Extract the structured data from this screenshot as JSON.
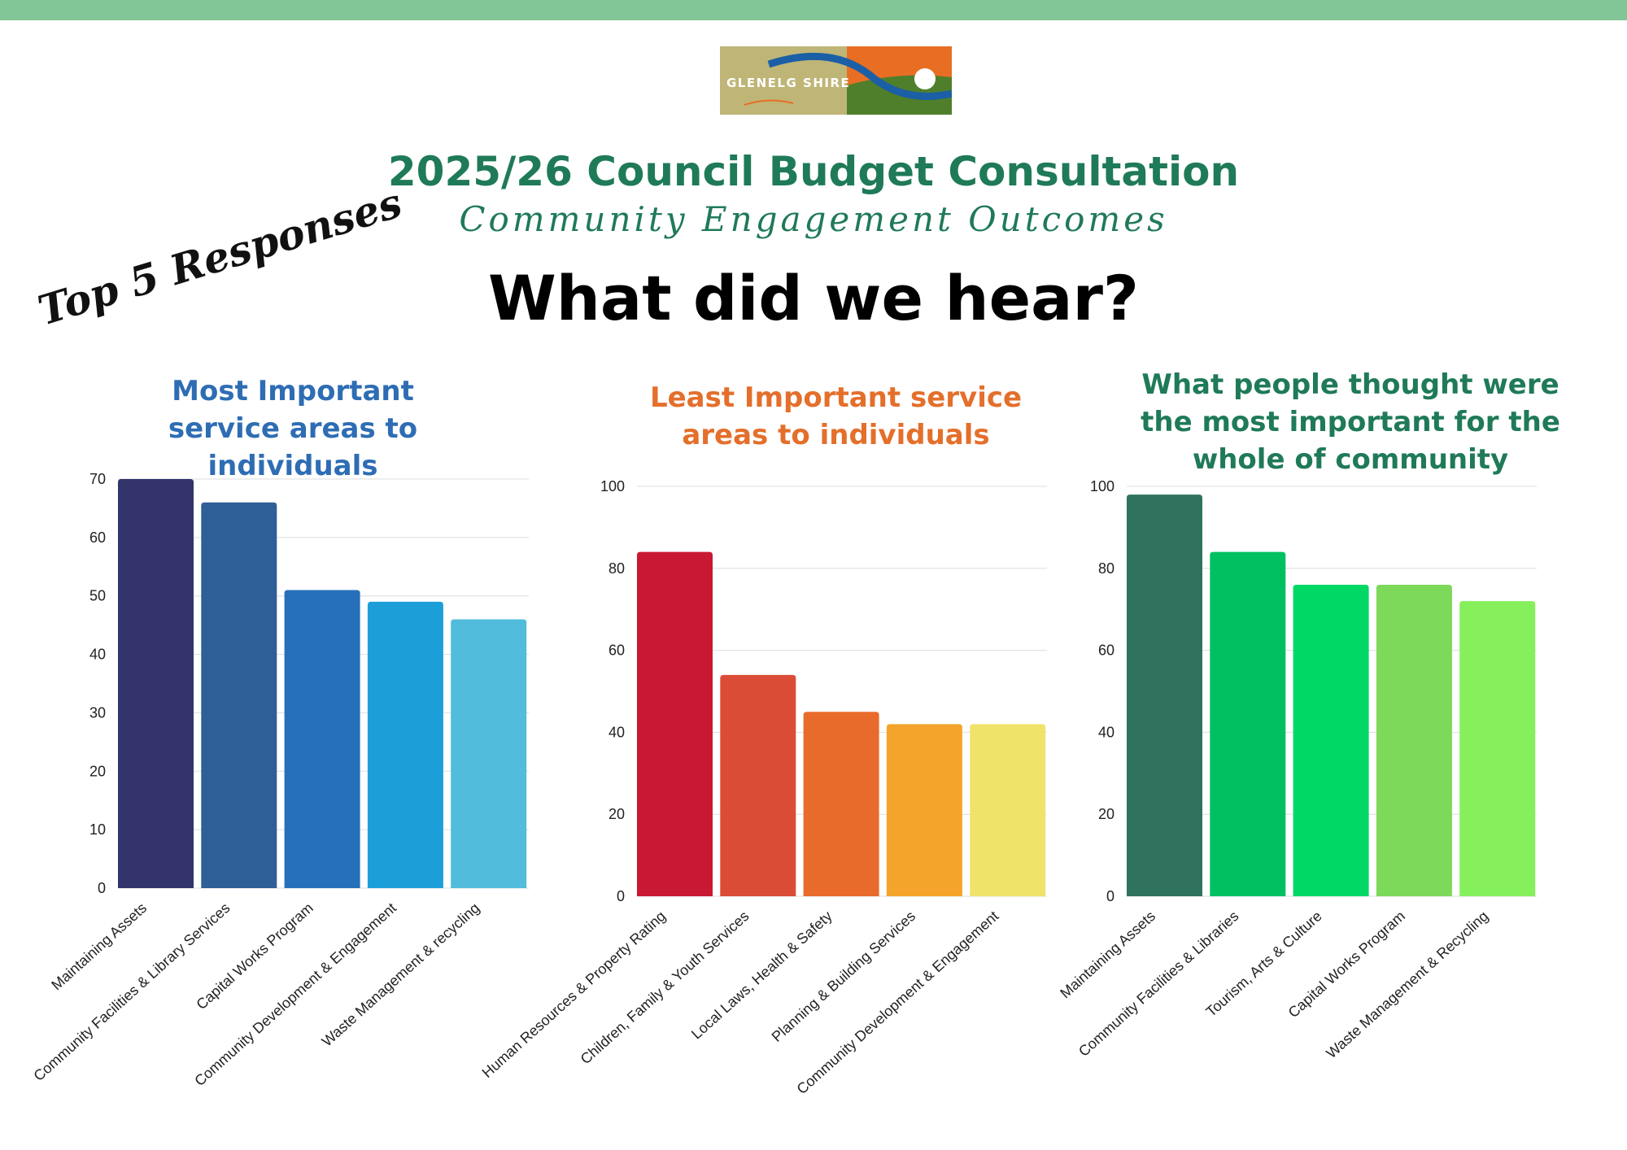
{
  "header": {
    "logo_text": "GLENELG SHIRE",
    "title": "2025/26 Council Budget Consultation",
    "subtitle": "Community Engagement Outcomes",
    "headline": "What did we hear?",
    "tag": "Top 5 Responses"
  },
  "colors": {
    "top_bar": "#82c596",
    "logo_left": "#bfb577",
    "logo_right": "#e86e24",
    "title_green": "#1f7a58"
  },
  "chart_titles": {
    "most": "Most Important service areas to individuals",
    "least": "Least Important service areas to individuals",
    "community": "What people thought were the most important  for the whole of community"
  },
  "chart_data": [
    {
      "type": "bar",
      "title": "Most Important service areas to individuals",
      "categories": [
        "Maintaining Assets",
        "Community Facilities & Library Services",
        "Capital Works Program",
        "Community Development & Engagement",
        "Waste Management & recycling"
      ],
      "values": [
        70,
        66,
        51,
        49,
        46
      ],
      "ylim": [
        0,
        70
      ],
      "yticks": [
        0,
        10,
        20,
        30,
        40,
        50,
        60,
        70
      ],
      "grid": true,
      "colors": [
        "#32346b",
        "#2e5f96",
        "#2670b9",
        "#1c9fd9",
        "#51bcdb"
      ],
      "title_color": "#2e6db4"
    },
    {
      "type": "bar",
      "title": "Least Important service areas to individuals",
      "categories": [
        "Human Resources & Property Rating",
        "Children, Family & Youth Services",
        "Local Laws, Health & Safety",
        "Planning & Building Services",
        "Community Development & Engagement"
      ],
      "values": [
        84,
        54,
        45,
        42,
        42
      ],
      "ylim": [
        0,
        100
      ],
      "yticks": [
        0,
        20,
        40,
        60,
        80,
        100
      ],
      "grid": true,
      "colors": [
        "#c91834",
        "#db4c36",
        "#e86b2b",
        "#f4a42b",
        "#f0e36a"
      ],
      "title_color": "#e46f2b"
    },
    {
      "type": "bar",
      "title": "What people thought were the most important  for the whole of community",
      "categories": [
        "Maintaining Assets",
        "Community Facilities & Libraries",
        "Tourism, Arts & Culture",
        "Capital Works Program",
        "Waste Management & Recycling"
      ],
      "values": [
        98,
        84,
        76,
        76,
        72
      ],
      "ylim": [
        0,
        100
      ],
      "yticks": [
        0,
        20,
        40,
        60,
        80,
        100
      ],
      "grid": true,
      "colors": [
        "#2f735e",
        "#00c062",
        "#00d866",
        "#7cd95a",
        "#86f05c"
      ],
      "title_color": "#1f7a58"
    }
  ]
}
